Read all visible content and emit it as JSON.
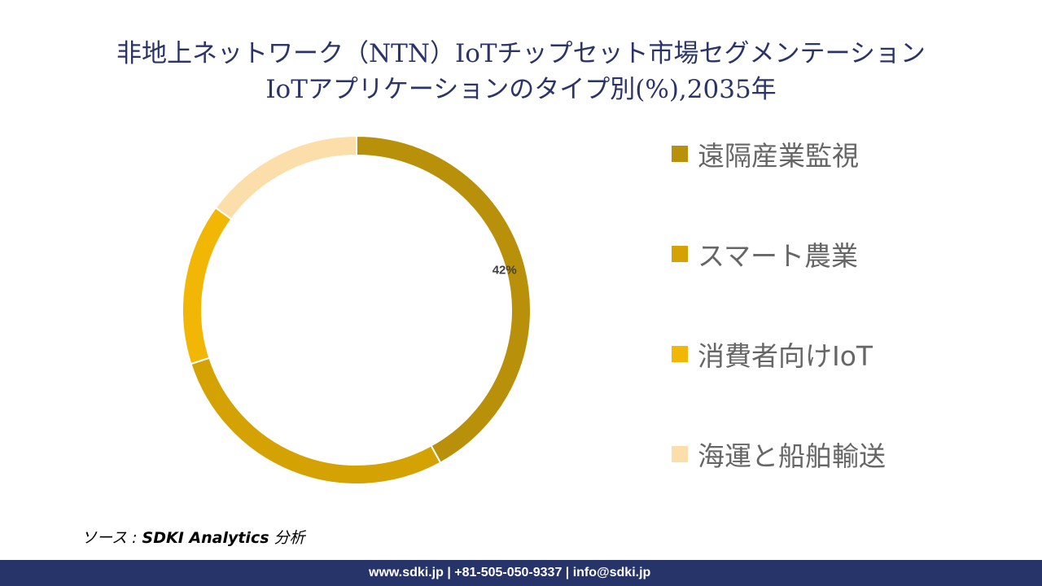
{
  "chart_data": {
    "type": "pie",
    "variant": "donut",
    "title": "非地上ネットワーク（NTN）IoTチップセット市場セグメンテーション",
    "subtitle": "IoTアプリケーションのタイプ別(%),2035年",
    "categories": [
      "遠隔産業監視",
      "スマート農業",
      "消費者向けIoT",
      "海運と船舶輸送"
    ],
    "values": [
      42,
      28,
      15,
      15
    ],
    "colors": [
      "#B8900A",
      "#D4A202",
      "#F2B705",
      "#FCDEAA"
    ],
    "data_labels": [
      "42%",
      "",
      "",
      ""
    ],
    "legend_position": "right"
  },
  "source": {
    "prefix": "ソース : ",
    "name": "SDKI Analytics",
    "suffix": " 分析"
  },
  "footer": {
    "text": "www.sdki.jp | +81-505-050-9337 | info@sdki.jp"
  }
}
